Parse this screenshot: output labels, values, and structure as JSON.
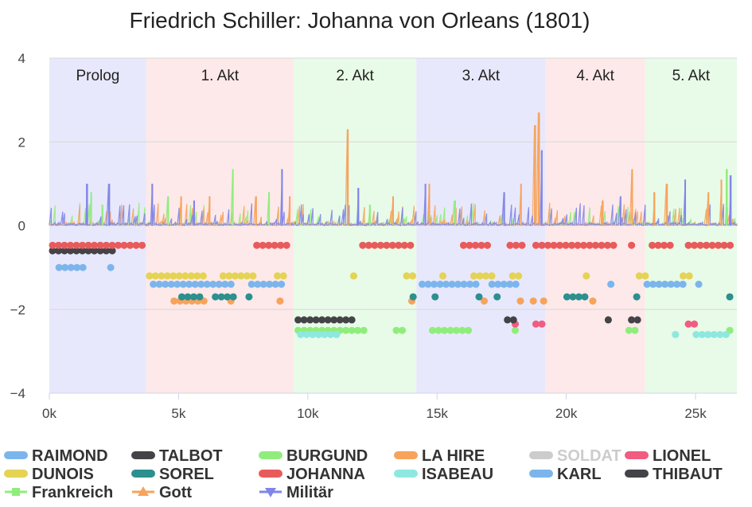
{
  "chart_data": {
    "type": "line",
    "title": "Friedrich Schiller: Johanna von Orleans (1801)",
    "xlim": [
      0,
      26600
    ],
    "ylim": [
      -4,
      4
    ],
    "x_ticks": [
      0,
      5000,
      10000,
      15000,
      20000,
      25000
    ],
    "x_tick_labels": [
      "0k",
      "5k",
      "10k",
      "15k",
      "20k",
      "25k"
    ],
    "y_ticks": [
      4,
      2,
      0,
      -2,
      -4
    ],
    "y_tick_labels": [
      "4",
      "2",
      "0",
      "−2",
      "−4"
    ],
    "grid": true,
    "legend_position": "bottom",
    "bands": [
      {
        "label": "Prolog",
        "from": 0,
        "to": 3750,
        "color": "#e8e8fc"
      },
      {
        "label": "1. Akt",
        "from": 3750,
        "to": 9450,
        "color": "#fde9e9"
      },
      {
        "label": "2. Akt",
        "from": 9450,
        "to": 14200,
        "color": "#e8fbe8"
      },
      {
        "label": "3. Akt",
        "from": 14200,
        "to": 19200,
        "color": "#e8e8fc"
      },
      {
        "label": "4. Akt",
        "from": 19200,
        "to": 23050,
        "color": "#fde9e9"
      },
      {
        "label": "5. Akt",
        "from": 23050,
        "to": 26600,
        "color": "#e8fbe8"
      }
    ],
    "presence_series": [
      {
        "name": "RAIMOND",
        "color": "#7cb5ec",
        "y": -1.0,
        "ranges": [
          [
            250,
            1450
          ],
          [
            2250,
            2350
          ]
        ]
      },
      {
        "name": "TALBOT",
        "color": "#434348",
        "y": -0.6,
        "ranges": [
          [
            0,
            2650
          ]
        ]
      },
      {
        "name": "BURGUND",
        "color": "#90ed7d",
        "y": -2.5,
        "ranges": [
          [
            9500,
            12300
          ],
          [
            13300,
            14000
          ],
          [
            14700,
            16500
          ],
          [
            17900,
            18300
          ],
          [
            22300,
            22800
          ],
          [
            26200,
            26500
          ]
        ]
      },
      {
        "name": "LA HIRE",
        "color": "#f7a35c",
        "y": -1.8,
        "ranges": [
          [
            4700,
            6200
          ],
          [
            6900,
            7200
          ],
          [
            8800,
            8900
          ],
          [
            13900,
            14200
          ],
          [
            16700,
            16800
          ],
          [
            18100,
            18200
          ],
          [
            18600,
            18700
          ],
          [
            19000,
            19100
          ],
          [
            20900,
            21000
          ]
        ]
      },
      {
        "name": "SOLDAT",
        "color": "#cccccc",
        "hidden": true,
        "y": -2.3,
        "ranges": []
      },
      {
        "name": "LIONEL",
        "color": "#f15c80",
        "y": -2.35,
        "ranges": [
          [
            17900,
            18300
          ],
          [
            18700,
            19300
          ],
          [
            24600,
            25200
          ]
        ]
      },
      {
        "name": "DUNOIS",
        "color": "#e4d354",
        "y": -1.2,
        "ranges": [
          [
            3750,
            6200
          ],
          [
            6600,
            8100
          ],
          [
            8700,
            9200
          ],
          [
            11650,
            11750
          ],
          [
            13700,
            14300
          ],
          [
            15100,
            15300
          ],
          [
            16300,
            17300
          ],
          [
            17800,
            18400
          ],
          [
            20650,
            21000
          ],
          [
            22700,
            23400
          ],
          [
            24400,
            25100
          ]
        ]
      },
      {
        "name": "SOREL",
        "color": "#2b908f",
        "y": -1.7,
        "ranges": [
          [
            5000,
            6100
          ],
          [
            6300,
            7400
          ],
          [
            7600,
            7800
          ],
          [
            13950,
            14100
          ],
          [
            14800,
            15100
          ],
          [
            16500,
            16800
          ],
          [
            17200,
            17500
          ],
          [
            19900,
            21000
          ],
          [
            22600,
            22700
          ],
          [
            26200,
            26400
          ]
        ]
      },
      {
        "name": "JOHANNA",
        "color": "#e85b5b",
        "y": -0.47,
        "ranges": [
          [
            0,
            3900
          ],
          [
            7900,
            9450
          ],
          [
            12000,
            14300
          ],
          [
            15900,
            17300
          ],
          [
            17700,
            18500
          ],
          [
            18700,
            22100
          ],
          [
            22400,
            22800
          ],
          [
            23200,
            24200
          ],
          [
            24600,
            26600
          ]
        ]
      },
      {
        "name": "ISABEAU",
        "color": "#8ee8e0",
        "y": -2.6,
        "ranges": [
          [
            9600,
            11300
          ],
          [
            24100,
            24300
          ],
          [
            24900,
            26400
          ]
        ]
      },
      {
        "name": "KARL",
        "color": "#7cb5ec",
        "y": -1.4,
        "ranges": [
          [
            3900,
            7200
          ],
          [
            7700,
            9300
          ],
          [
            14300,
            16800
          ],
          [
            17000,
            18400
          ],
          [
            21600,
            21750
          ],
          [
            23000,
            24800
          ],
          [
            25000,
            25200
          ]
        ]
      },
      {
        "name": "THIBAUT",
        "color": "#434348",
        "y": -2.25,
        "ranges": [
          [
            9500,
            12000
          ],
          [
            17600,
            18200
          ],
          [
            21500,
            21700
          ],
          [
            22400,
            22900
          ]
        ]
      }
    ],
    "spike_series": [
      {
        "name": "Frankreich",
        "color": "#90ed7d"
      },
      {
        "name": "Gott",
        "color": "#f7a35c"
      },
      {
        "name": "Militär",
        "color": "#8085e9"
      }
    ],
    "spike_peaks": [
      {
        "series": "Militär",
        "x": 1450,
        "y": 1.0
      },
      {
        "series": "Frankreich",
        "x": 1620,
        "y": 0.8
      },
      {
        "series": "Militär",
        "x": 2320,
        "y": 1.0
      },
      {
        "series": "Frankreich",
        "x": 2050,
        "y": 0.5
      },
      {
        "series": "Militär",
        "x": 3980,
        "y": 1.0
      },
      {
        "series": "Frankreich",
        "x": 4600,
        "y": 0.7
      },
      {
        "series": "Gott",
        "x": 5100,
        "y": 0.7
      },
      {
        "series": "Militär",
        "x": 5600,
        "y": 0.6
      },
      {
        "series": "Gott",
        "x": 6200,
        "y": 0.7
      },
      {
        "series": "Frankreich",
        "x": 7100,
        "y": 1.35
      },
      {
        "series": "Gott",
        "x": 8000,
        "y": 0.7
      },
      {
        "series": "Frankreich",
        "x": 8500,
        "y": 0.8
      },
      {
        "series": "Militär",
        "x": 9000,
        "y": 1.35
      },
      {
        "series": "Gott",
        "x": 9300,
        "y": 0.7
      },
      {
        "series": "Gott",
        "x": 11550,
        "y": 2.3
      },
      {
        "series": "Militär",
        "x": 11950,
        "y": 0.9
      },
      {
        "series": "Frankreich",
        "x": 12400,
        "y": 0.5
      },
      {
        "series": "Gott",
        "x": 13300,
        "y": 0.7
      },
      {
        "series": "Militär",
        "x": 14550,
        "y": 1.0
      },
      {
        "series": "Gott",
        "x": 14700,
        "y": 1.0
      },
      {
        "series": "Frankreich",
        "x": 15700,
        "y": 0.6
      },
      {
        "series": "Militär",
        "x": 17600,
        "y": 0.8
      },
      {
        "series": "Gott",
        "x": 18250,
        "y": 1.0
      },
      {
        "series": "Gott",
        "x": 18800,
        "y": 2.4
      },
      {
        "series": "Gott",
        "x": 18950,
        "y": 2.7
      },
      {
        "series": "Militär",
        "x": 19050,
        "y": 1.8
      },
      {
        "series": "Gott",
        "x": 21400,
        "y": 0.6
      },
      {
        "series": "Militär",
        "x": 22100,
        "y": 0.7
      },
      {
        "series": "Gott",
        "x": 22550,
        "y": 1.35
      },
      {
        "series": "Gott",
        "x": 23400,
        "y": 0.8
      },
      {
        "series": "Gott",
        "x": 23900,
        "y": 1.0
      },
      {
        "series": "Militär",
        "x": 24600,
        "y": 1.1
      },
      {
        "series": "Gott",
        "x": 25500,
        "y": 0.8
      },
      {
        "series": "Frankreich",
        "x": 26200,
        "y": 1.35
      },
      {
        "series": "Gott",
        "x": 26000,
        "y": 1.1
      },
      {
        "series": "Militär",
        "x": 26350,
        "y": 1.2
      }
    ],
    "legend": [
      {
        "name": "RAIMOND",
        "color": "#7cb5ec",
        "marker": "circle"
      },
      {
        "name": "TALBOT",
        "color": "#434348",
        "marker": "circle"
      },
      {
        "name": "BURGUND",
        "color": "#90ed7d",
        "marker": "circle"
      },
      {
        "name": "LA HIRE",
        "color": "#f7a35c",
        "marker": "circle"
      },
      {
        "name": "SOLDAT",
        "color": "#cccccc",
        "marker": "circle",
        "hidden": true
      },
      {
        "name": "LIONEL",
        "color": "#f15c80",
        "marker": "circle"
      },
      {
        "name": "DUNOIS",
        "color": "#e4d354",
        "marker": "circle"
      },
      {
        "name": "SOREL",
        "color": "#2b908f",
        "marker": "circle"
      },
      {
        "name": "JOHANNA",
        "color": "#e85b5b",
        "marker": "circle"
      },
      {
        "name": "ISABEAU",
        "color": "#8ee8e0",
        "marker": "circle"
      },
      {
        "name": "KARL",
        "color": "#7cb5ec",
        "marker": "circle"
      },
      {
        "name": "THIBAUT",
        "color": "#434348",
        "marker": "circle"
      },
      {
        "name": "Frankreich",
        "color": "#90ed7d",
        "marker": "square"
      },
      {
        "name": "Gott",
        "color": "#f7a35c",
        "marker": "triangle"
      },
      {
        "name": "Militär",
        "color": "#8085e9",
        "marker": "triangle-down"
      }
    ]
  }
}
